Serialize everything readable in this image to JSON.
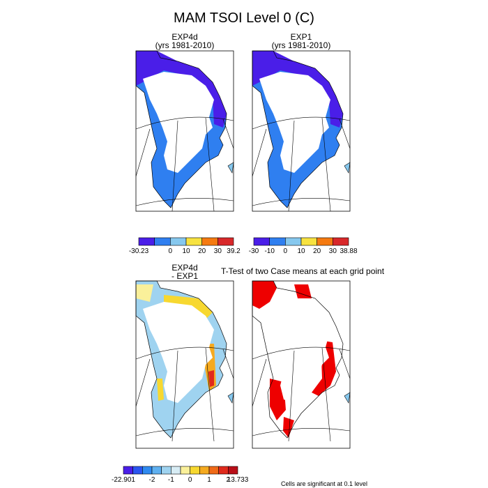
{
  "title": "MAM TSOI Level 0 (C)",
  "panels": [
    {
      "title": "EXP4d",
      "subtitle": "(yrs 1981-2010)"
    },
    {
      "title": "EXP1",
      "subtitle": "(yrs 1981-2010)"
    },
    {
      "title": "EXP4d",
      "subtitle": "- EXP1"
    },
    {
      "title": "T-Test of two Case means at each grid point"
    }
  ],
  "colorbars": [
    {
      "labels": [
        "-30.23",
        null,
        "0",
        "10",
        "20",
        "30",
        "39.2"
      ],
      "colors": [
        "#4a1ee8",
        "#2f7ff0",
        "#86c8ee",
        "#f7e240",
        "#f57a10",
        "#d8282a"
      ]
    },
    {
      "labels": [
        "-30",
        "-10",
        "0",
        "10",
        "20",
        "30",
        "38.88"
      ],
      "colors": [
        "#4a1ee8",
        "#2f7ff0",
        "#86c8ee",
        "#f7e240",
        "#f57a10",
        "#d8282a"
      ]
    },
    {
      "labels": [
        "-22.901",
        null,
        null,
        "-2",
        null,
        "-1",
        null,
        "0",
        null,
        "1",
        null,
        "2",
        "13.733"
      ],
      "colors": [
        "#4a1ee8",
        "#2a55f0",
        "#2f8af0",
        "#5fb0f0",
        "#9fd3f0",
        "#d7ecf4",
        "#faf09a",
        "#f7d830",
        "#f5aa20",
        "#f06a18",
        "#e02a1c",
        "#b80e18"
      ]
    }
  ],
  "footnote": "Cells are significant at 0.1 level"
}
